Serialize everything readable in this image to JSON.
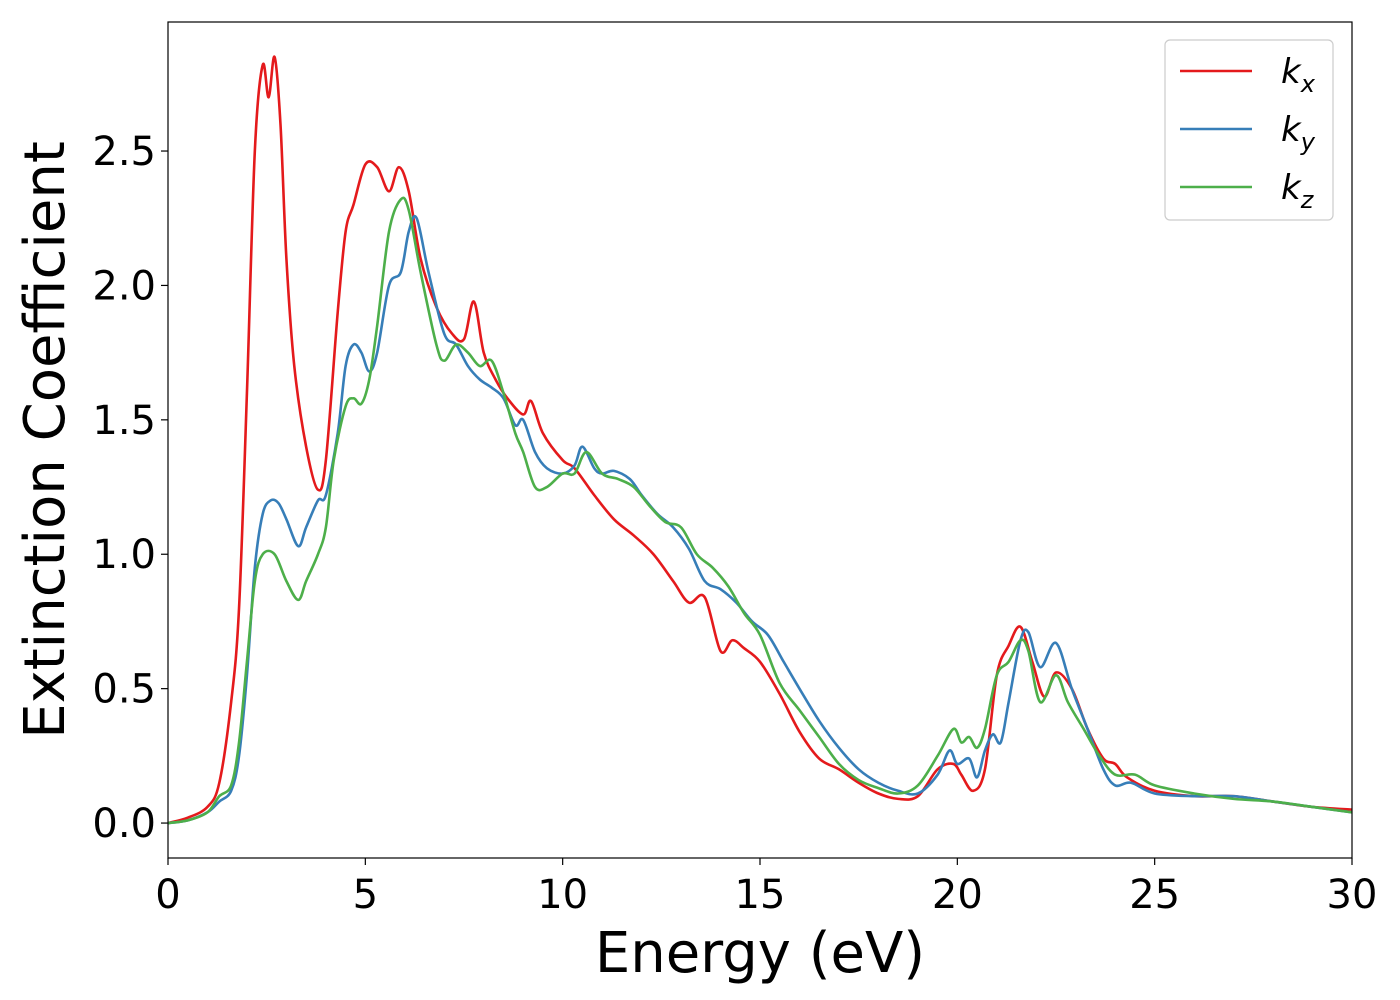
{
  "chart_data": {
    "type": "line",
    "xlabel": "Energy (eV)",
    "ylabel": "Extinction Coefficient",
    "xlim": [
      0,
      30
    ],
    "ylim": [
      -0.13,
      2.98
    ],
    "xticks": [
      "0",
      "5",
      "10",
      "15",
      "20",
      "25",
      "30"
    ],
    "yticks": [
      "0.0",
      "0.5",
      "1.0",
      "1.5",
      "2.0",
      "2.5"
    ],
    "grid": false,
    "legend_position": "top-right",
    "series": [
      {
        "name": "k",
        "subscript": "x",
        "color": "#e41a1c",
        "x": [
          0,
          0.5,
          1,
          1.3,
          1.6,
          1.8,
          2.0,
          2.2,
          2.4,
          2.55,
          2.7,
          2.85,
          3.0,
          3.2,
          3.5,
          3.8,
          4.0,
          4.3,
          4.5,
          4.7,
          5.0,
          5.3,
          5.6,
          5.85,
          6.1,
          6.4,
          6.8,
          7.2,
          7.5,
          7.75,
          8.0,
          8.3,
          8.6,
          9.0,
          9.2,
          9.5,
          10.0,
          10.3,
          10.8,
          11.3,
          11.8,
          12.3,
          12.8,
          13.2,
          13.6,
          14.0,
          14.3,
          14.6,
          15.0,
          15.5,
          16.0,
          16.5,
          17.0,
          17.5,
          18.0,
          18.5,
          19.0,
          19.5,
          19.9,
          20.1,
          20.4,
          20.7,
          21.0,
          21.3,
          21.6,
          21.9,
          22.2,
          22.5,
          22.9,
          23.3,
          23.7,
          24.0,
          24.3,
          25.0,
          26.0,
          27.0,
          28.0,
          29.0,
          30.0
        ],
        "y": [
          0.0,
          0.02,
          0.06,
          0.15,
          0.45,
          0.8,
          1.6,
          2.5,
          2.82,
          2.7,
          2.85,
          2.6,
          2.1,
          1.7,
          1.4,
          1.24,
          1.35,
          1.9,
          2.2,
          2.3,
          2.45,
          2.44,
          2.35,
          2.44,
          2.35,
          2.1,
          1.92,
          1.82,
          1.8,
          1.94,
          1.75,
          1.65,
          1.58,
          1.52,
          1.57,
          1.45,
          1.35,
          1.32,
          1.22,
          1.13,
          1.07,
          1.0,
          0.9,
          0.82,
          0.84,
          0.64,
          0.68,
          0.65,
          0.6,
          0.48,
          0.34,
          0.24,
          0.2,
          0.15,
          0.11,
          0.09,
          0.1,
          0.2,
          0.22,
          0.18,
          0.12,
          0.2,
          0.55,
          0.66,
          0.73,
          0.6,
          0.47,
          0.56,
          0.5,
          0.35,
          0.24,
          0.22,
          0.17,
          0.12,
          0.1,
          0.1,
          0.08,
          0.06,
          0.05
        ]
      },
      {
        "name": "k",
        "subscript": "y",
        "color": "#377eb8",
        "x": [
          0,
          0.5,
          1,
          1.3,
          1.6,
          1.8,
          2.0,
          2.2,
          2.4,
          2.6,
          2.8,
          3.0,
          3.3,
          3.5,
          3.8,
          4.0,
          4.3,
          4.5,
          4.7,
          4.9,
          5.1,
          5.3,
          5.6,
          5.9,
          6.1,
          6.3,
          6.6,
          7.0,
          7.3,
          7.6,
          7.9,
          8.2,
          8.5,
          8.8,
          9.0,
          9.3,
          9.6,
          10.0,
          10.3,
          10.5,
          10.8,
          11.0,
          11.3,
          11.7,
          12.0,
          12.4,
          12.8,
          13.2,
          13.6,
          14.0,
          14.4,
          14.8,
          15.2,
          15.6,
          16.0,
          16.5,
          17.0,
          17.5,
          18.0,
          18.5,
          19.0,
          19.5,
          19.8,
          20.0,
          20.3,
          20.5,
          20.7,
          20.9,
          21.1,
          21.3,
          21.6,
          21.8,
          22.1,
          22.5,
          22.9,
          23.3,
          23.7,
          24.0,
          24.4,
          25.0,
          26.0,
          27.0,
          28.0,
          29.0,
          30.0
        ],
        "y": [
          0.0,
          0.01,
          0.04,
          0.08,
          0.12,
          0.25,
          0.55,
          0.95,
          1.15,
          1.2,
          1.19,
          1.13,
          1.03,
          1.1,
          1.2,
          1.22,
          1.45,
          1.7,
          1.78,
          1.75,
          1.68,
          1.75,
          2.0,
          2.05,
          2.2,
          2.25,
          2.05,
          1.82,
          1.78,
          1.7,
          1.65,
          1.62,
          1.58,
          1.48,
          1.5,
          1.38,
          1.32,
          1.3,
          1.33,
          1.4,
          1.32,
          1.3,
          1.31,
          1.28,
          1.22,
          1.15,
          1.1,
          1.02,
          0.9,
          0.87,
          0.82,
          0.75,
          0.7,
          0.6,
          0.5,
          0.38,
          0.28,
          0.2,
          0.15,
          0.12,
          0.11,
          0.18,
          0.27,
          0.22,
          0.24,
          0.17,
          0.27,
          0.33,
          0.3,
          0.45,
          0.68,
          0.71,
          0.58,
          0.67,
          0.5,
          0.35,
          0.2,
          0.14,
          0.15,
          0.11,
          0.1,
          0.1,
          0.08,
          0.06,
          0.04
        ]
      },
      {
        "name": "k",
        "subscript": "z",
        "color": "#4daf4a",
        "x": [
          0,
          0.5,
          1,
          1.3,
          1.6,
          1.8,
          2.0,
          2.2,
          2.4,
          2.7,
          3.0,
          3.3,
          3.5,
          3.8,
          4.0,
          4.2,
          4.5,
          4.7,
          4.9,
          5.1,
          5.3,
          5.6,
          5.9,
          6.1,
          6.4,
          6.8,
          7.0,
          7.3,
          7.6,
          7.9,
          8.2,
          8.5,
          8.8,
          9.0,
          9.3,
          9.6,
          10.0,
          10.3,
          10.6,
          11.0,
          11.4,
          11.8,
          12.2,
          12.6,
          13.0,
          13.4,
          13.8,
          14.2,
          14.6,
          15.0,
          15.5,
          16.0,
          16.5,
          17.0,
          17.5,
          18.0,
          18.5,
          19.0,
          19.5,
          19.9,
          20.1,
          20.3,
          20.5,
          20.7,
          21.0,
          21.3,
          21.6,
          21.8,
          22.1,
          22.5,
          22.8,
          23.2,
          23.6,
          24.0,
          24.5,
          25.0,
          26.0,
          27.0,
          28.0,
          29.0,
          30.0
        ],
        "y": [
          0.0,
          0.01,
          0.04,
          0.1,
          0.14,
          0.3,
          0.6,
          0.9,
          1.0,
          1.0,
          0.9,
          0.83,
          0.9,
          1.0,
          1.1,
          1.35,
          1.55,
          1.58,
          1.56,
          1.65,
          1.85,
          2.2,
          2.32,
          2.28,
          2.05,
          1.78,
          1.72,
          1.78,
          1.75,
          1.7,
          1.72,
          1.6,
          1.45,
          1.38,
          1.25,
          1.25,
          1.3,
          1.3,
          1.38,
          1.3,
          1.28,
          1.25,
          1.18,
          1.12,
          1.1,
          1.0,
          0.95,
          0.88,
          0.78,
          0.7,
          0.52,
          0.42,
          0.32,
          0.22,
          0.16,
          0.13,
          0.11,
          0.14,
          0.25,
          0.35,
          0.3,
          0.32,
          0.28,
          0.35,
          0.55,
          0.6,
          0.68,
          0.64,
          0.45,
          0.55,
          0.45,
          0.35,
          0.25,
          0.18,
          0.18,
          0.14,
          0.11,
          0.09,
          0.08,
          0.06,
          0.04
        ]
      }
    ]
  }
}
